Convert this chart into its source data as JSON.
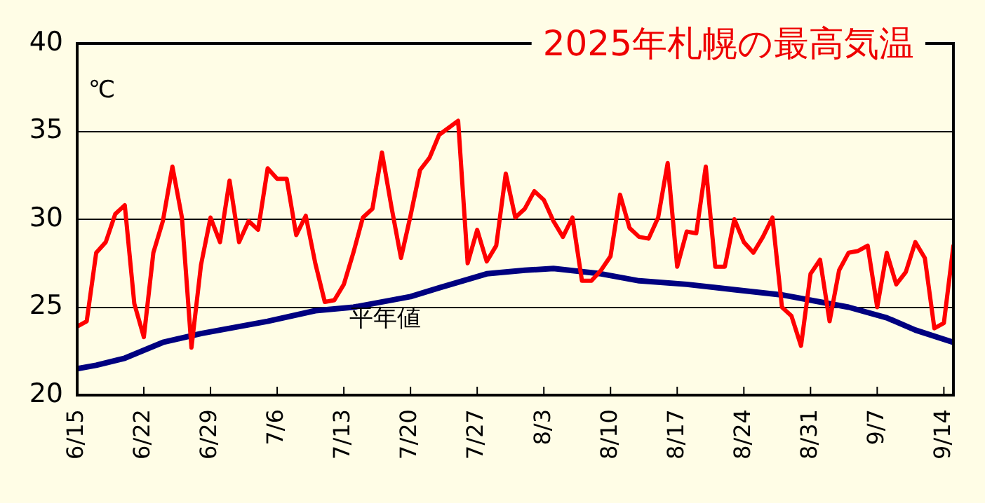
{
  "chart_data": {
    "type": "line",
    "title": "2025年札幌の最高気温",
    "ylabel": "℃",
    "x": [
      "--06-15",
      "--06-16",
      "--06-17",
      "--06-18",
      "--06-19",
      "--06-20",
      "--06-21",
      "--06-22",
      "--06-23",
      "--06-24",
      "--06-25",
      "--06-26",
      "--06-27",
      "--06-28",
      "--06-29",
      "--06-30",
      "--07-01",
      "--07-02",
      "--07-03",
      "--07-04",
      "--07-05",
      "--07-06",
      "--07-07",
      "--07-08",
      "--07-09",
      "--07-10",
      "--07-11",
      "--07-12",
      "--07-13",
      "--07-14",
      "--07-15",
      "--07-16",
      "--07-17",
      "--07-18",
      "--07-19",
      "--07-20",
      "--07-21",
      "--07-22",
      "--07-23",
      "--07-24",
      "--07-25",
      "--07-26",
      "--07-27",
      "--07-28",
      "--07-29",
      "--07-30",
      "--07-31",
      "--08-01",
      "--08-02",
      "--08-03",
      "--08-04",
      "--08-05",
      "--08-06",
      "--08-07",
      "--08-08",
      "--08-09",
      "--08-10",
      "--08-11",
      "--08-12",
      "--08-13",
      "--08-14",
      "--08-15",
      "--08-16",
      "--08-17",
      "--08-18",
      "--08-19",
      "--08-20",
      "--08-21",
      "--08-22",
      "--08-23",
      "--08-24",
      "--08-25",
      "--08-26",
      "--08-27",
      "--08-28",
      "--08-29",
      "--08-30",
      "--08-31",
      "--09-01",
      "--09-02",
      "--09-03",
      "--09-04",
      "--09-05",
      "--09-06",
      "--09-07",
      "--09-08",
      "--09-09",
      "--09-10",
      "--09-11",
      "--09-12",
      "--09-13",
      "--09-14",
      "--09-15"
    ],
    "series": [
      {
        "color": "#ff0000",
        "values": [
          23.9,
          24.2,
          28.1,
          28.7,
          30.3,
          30.8,
          25.2,
          23.3,
          28.1,
          29.9,
          33.0,
          30.1,
          22.7,
          27.4,
          30.1,
          28.7,
          32.2,
          28.7,
          29.9,
          29.4,
          32.9,
          32.3,
          32.3,
          29.1,
          30.2,
          27.5,
          25.3,
          25.4,
          26.3,
          28.1,
          30.1,
          30.6,
          33.8,
          30.7,
          27.8,
          30.2,
          32.8,
          33.5,
          34.8,
          35.2,
          35.6,
          27.5,
          29.4,
          27.6,
          28.5,
          32.6,
          30.1,
          30.6,
          31.6,
          31.1,
          29.9,
          29.0,
          30.1,
          26.5,
          26.5,
          27.1,
          27.9,
          31.4,
          29.5,
          29.0,
          28.9,
          30.1,
          33.2,
          27.3,
          29.3,
          29.2,
          33.0,
          27.3,
          27.3,
          30.0,
          28.7,
          28.1,
          29.0,
          30.1,
          25.0,
          24.5,
          22.8,
          26.9,
          27.7,
          24.2,
          27.1,
          28.1,
          28.2,
          28.5,
          25.0,
          28.1,
          26.3,
          27.0,
          28.7,
          27.8,
          23.8,
          24.1,
          28.5
        ]
      },
      {
        "name": "平年値",
        "color": "#000080",
        "x": [
          "--06-15",
          "--06-17",
          "--06-20",
          "--06-24",
          "--06-28",
          "--07-05",
          "--07-10",
          "--07-14",
          "--07-20",
          "--07-23",
          "--07-28",
          "--08-01",
          "--08-04",
          "--08-09",
          "--08-13",
          "--08-18",
          "--08-23",
          "--08-28",
          "--09-01",
          "--09-04",
          "--09-08",
          "--09-11",
          "--09-15"
        ],
        "values": [
          21.5,
          21.7,
          22.1,
          23.0,
          23.5,
          24.2,
          24.8,
          25.0,
          25.6,
          26.1,
          26.9,
          27.1,
          27.2,
          26.9,
          26.5,
          26.3,
          26.0,
          25.7,
          25.3,
          25.0,
          24.4,
          23.7,
          23.0
        ]
      }
    ],
    "xlim": [
      "--06-15",
      "--09-15"
    ],
    "xticks": [
      {
        "value": "--06-15",
        "label": "6/15"
      },
      {
        "value": "--06-22",
        "label": "6/22"
      },
      {
        "value": "--06-29",
        "label": "6/29"
      },
      {
        "value": "--07-06",
        "label": "7/6"
      },
      {
        "value": "--07-13",
        "label": "7/13"
      },
      {
        "value": "--07-20",
        "label": "7/20"
      },
      {
        "value": "--07-27",
        "label": "7/27"
      },
      {
        "value": "--08-03",
        "label": "8/3"
      },
      {
        "value": "--08-10",
        "label": "8/10"
      },
      {
        "value": "--08-17",
        "label": "8/17"
      },
      {
        "value": "--08-24",
        "label": "8/24"
      },
      {
        "value": "--08-31",
        "label": "8/31"
      },
      {
        "value": "--09-07",
        "label": "9/7"
      },
      {
        "value": "--09-14",
        "label": "9/14"
      }
    ],
    "ylim": [
      20,
      40
    ],
    "yticks": [
      20,
      25,
      30,
      35,
      40
    ],
    "grid": "y",
    "marker": "none"
  }
}
